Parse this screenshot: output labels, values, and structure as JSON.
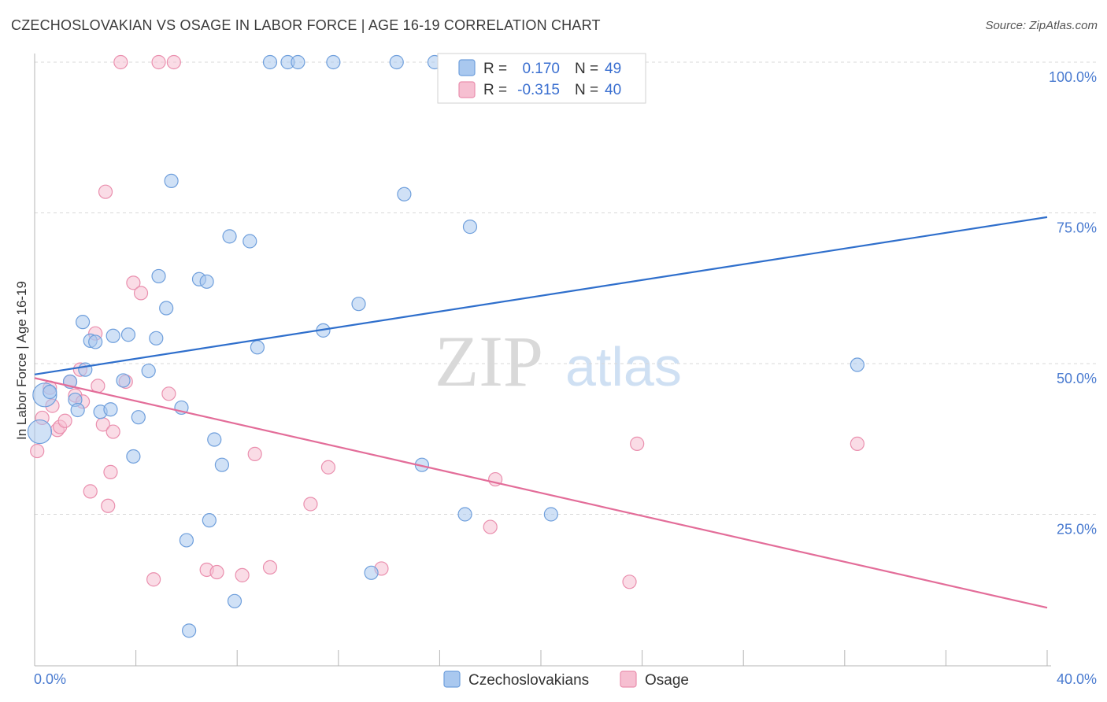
{
  "title": "CZECHOSLOVAKIAN VS OSAGE IN LABOR FORCE | AGE 16-19 CORRELATION CHART",
  "source": "Source: ZipAtlas.com",
  "watermark": {
    "zip": "ZIP",
    "atlas": "atlas"
  },
  "colors": {
    "blue_fill": "#a9c8ef",
    "blue_stroke": "#6f9fdc",
    "blue_line": "#2f6fcc",
    "pink_fill": "#f6bfd1",
    "pink_stroke": "#ea8fae",
    "pink_line": "#e36d99",
    "grid": "#d8d8d8",
    "tick_label": "#4a7bd0"
  },
  "chart_data": {
    "type": "scatter",
    "title": "CZECHOSLOVAKIAN VS OSAGE IN LABOR FORCE | AGE 16-19 CORRELATION CHART",
    "xlabel": "",
    "ylabel": "In Labor Force | Age 16-19",
    "xlim": [
      0,
      40
    ],
    "ylim": [
      0,
      104
    ],
    "x_tick_labels": [
      "0.0%",
      "40.0%"
    ],
    "y_ticks": [
      25,
      50,
      75,
      100
    ],
    "y_tick_labels": [
      "25.0%",
      "50.0%",
      "75.0%",
      "100.0%"
    ],
    "legend_stats": [
      {
        "r_label": "R =",
        "r": "0.170",
        "n_label": "N =",
        "n": "49"
      },
      {
        "r_label": "R =",
        "r": "-0.315",
        "n_label": "N =",
        "n": "40"
      }
    ],
    "series": [
      {
        "name": "Czechoslovakians",
        "color": "#a9c8ef",
        "trend": {
          "x": [
            0,
            40
          ],
          "y": [
            48.2,
            74.3
          ]
        },
        "points": [
          [
            0.2,
            38.7
          ],
          [
            0.4,
            44.8
          ],
          [
            0.6,
            45.3
          ],
          [
            1.4,
            47.0
          ],
          [
            2.0,
            49.0
          ],
          [
            1.6,
            44.0
          ],
          [
            1.7,
            42.3
          ],
          [
            1.9,
            56.9
          ],
          [
            2.2,
            53.8
          ],
          [
            2.4,
            53.6
          ],
          [
            2.6,
            42.0
          ],
          [
            3.0,
            42.4
          ],
          [
            3.1,
            54.6
          ],
          [
            3.5,
            47.2
          ],
          [
            3.7,
            54.8
          ],
          [
            3.9,
            34.6
          ],
          [
            4.1,
            41.1
          ],
          [
            4.5,
            48.8
          ],
          [
            4.8,
            54.2
          ],
          [
            4.9,
            64.5
          ],
          [
            5.2,
            59.2
          ],
          [
            5.4,
            80.3
          ],
          [
            5.8,
            42.7
          ],
          [
            6.0,
            20.7
          ],
          [
            6.1,
            5.7
          ],
          [
            6.5,
            64.0
          ],
          [
            6.8,
            63.6
          ],
          [
            6.9,
            24.0
          ],
          [
            7.1,
            37.4
          ],
          [
            7.4,
            33.2
          ],
          [
            7.7,
            71.1
          ],
          [
            7.9,
            10.6
          ],
          [
            8.5,
            70.3
          ],
          [
            8.8,
            52.7
          ],
          [
            9.3,
            100
          ],
          [
            10.0,
            100
          ],
          [
            10.4,
            100
          ],
          [
            11.4,
            55.5
          ],
          [
            11.8,
            100
          ],
          [
            12.8,
            59.9
          ],
          [
            13.3,
            15.3
          ],
          [
            14.3,
            100
          ],
          [
            14.6,
            78.1
          ],
          [
            15.3,
            33.2
          ],
          [
            15.8,
            100
          ],
          [
            17.0,
            25.0
          ],
          [
            17.2,
            72.7
          ],
          [
            20.4,
            25.0
          ],
          [
            32.5,
            49.8
          ]
        ]
      },
      {
        "name": "Osage",
        "color": "#f6bfd1",
        "trend": {
          "x": [
            0,
            40
          ],
          "y": [
            47.6,
            9.5
          ]
        },
        "points": [
          [
            0.1,
            35.5
          ],
          [
            0.3,
            41.0
          ],
          [
            0.6,
            46.0
          ],
          [
            0.7,
            43.0
          ],
          [
            0.9,
            39.0
          ],
          [
            1.0,
            39.5
          ],
          [
            1.2,
            40.5
          ],
          [
            1.4,
            47.0
          ],
          [
            1.6,
            44.7
          ],
          [
            1.8,
            49.0
          ],
          [
            1.9,
            43.7
          ],
          [
            2.2,
            28.8
          ],
          [
            2.4,
            55.0
          ],
          [
            2.5,
            46.3
          ],
          [
            2.7,
            39.9
          ],
          [
            2.8,
            78.5
          ],
          [
            2.9,
            26.4
          ],
          [
            3.0,
            32.0
          ],
          [
            3.1,
            38.7
          ],
          [
            3.4,
            100
          ],
          [
            3.6,
            47.0
          ],
          [
            3.9,
            63.4
          ],
          [
            4.2,
            61.7
          ],
          [
            4.7,
            14.2
          ],
          [
            4.9,
            100
          ],
          [
            5.3,
            45.0
          ],
          [
            5.5,
            100
          ],
          [
            6.8,
            15.8
          ],
          [
            7.2,
            15.4
          ],
          [
            8.2,
            14.9
          ],
          [
            8.7,
            35.0
          ],
          [
            9.3,
            16.2
          ],
          [
            10.9,
            26.7
          ],
          [
            11.6,
            32.8
          ],
          [
            13.7,
            16.0
          ],
          [
            18.0,
            22.9
          ],
          [
            18.2,
            30.8
          ],
          [
            23.5,
            13.8
          ],
          [
            23.8,
            36.7
          ],
          [
            32.5,
            36.7
          ]
        ]
      }
    ]
  }
}
